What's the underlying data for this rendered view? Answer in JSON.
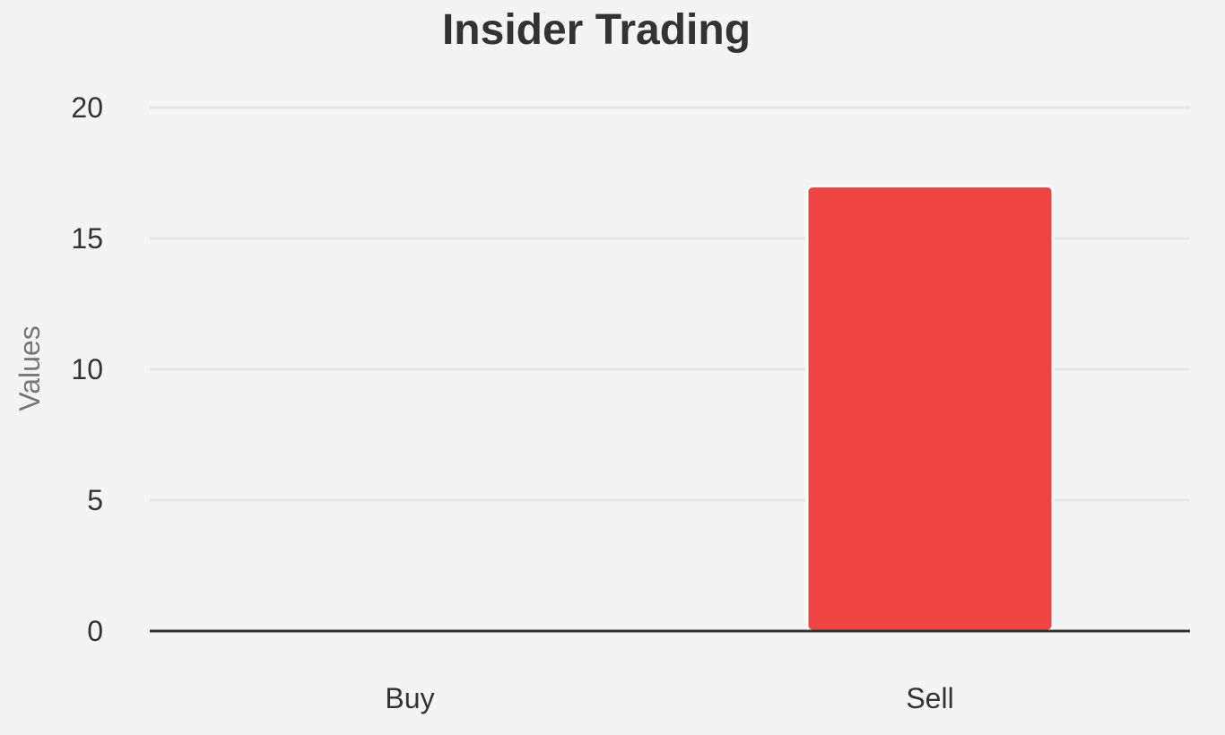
{
  "chart_data": {
    "type": "bar",
    "title": "Insider Trading",
    "xlabel": "",
    "ylabel": "Values",
    "categories": [
      "Buy",
      "Sell"
    ],
    "values": [
      0,
      17
    ],
    "ylim": [
      0,
      20
    ],
    "yticks": [
      "0",
      "5",
      "10",
      "15",
      "20"
    ],
    "grid": true,
    "legend": "none",
    "colors": {
      "bar": "#ef4444",
      "bar_stroke": "#ffffff",
      "grid": "#e6e6e6",
      "baseline": "#333333",
      "background": "#f4f4f4"
    }
  }
}
